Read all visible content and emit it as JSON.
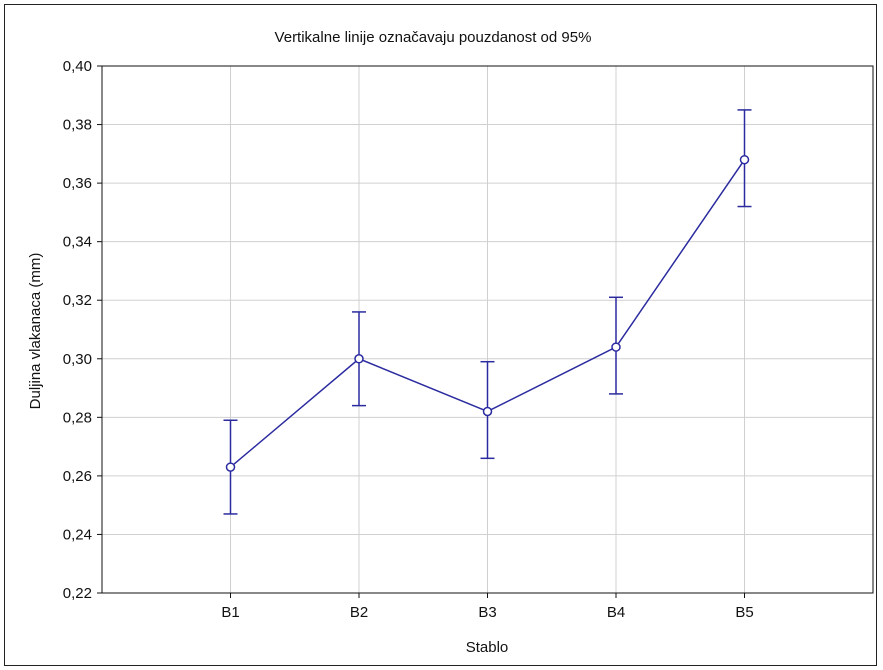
{
  "chart_data": {
    "type": "line",
    "title": "Vertikalne linije označavaju pouzdanost od 95%",
    "xlabel": "Stablo",
    "ylabel": "Duljina vlakanaca (mm)",
    "categories": [
      "B1",
      "B2",
      "B3",
      "B4",
      "B5"
    ],
    "series": [
      {
        "values": [
          0.263,
          0.3,
          0.282,
          0.304,
          0.368
        ],
        "ci_lower": [
          0.247,
          0.284,
          0.266,
          0.288,
          0.352
        ],
        "ci_upper": [
          0.279,
          0.316,
          0.299,
          0.321,
          0.385
        ]
      }
    ],
    "ylim": [
      0.22,
      0.4
    ],
    "yticks": [
      0.22,
      0.24,
      0.26,
      0.28,
      0.3,
      0.32,
      0.34,
      0.36,
      0.38,
      0.4
    ],
    "ytick_labels": [
      "0,22",
      "0,24",
      "0,26",
      "0,28",
      "0,30",
      "0,32",
      "0,34",
      "0,36",
      "0,38",
      "0,40"
    ],
    "grid": true,
    "colors": {
      "series": "#2b2ba0",
      "grid": "#d0d0d0",
      "axis": "#111111"
    }
  }
}
